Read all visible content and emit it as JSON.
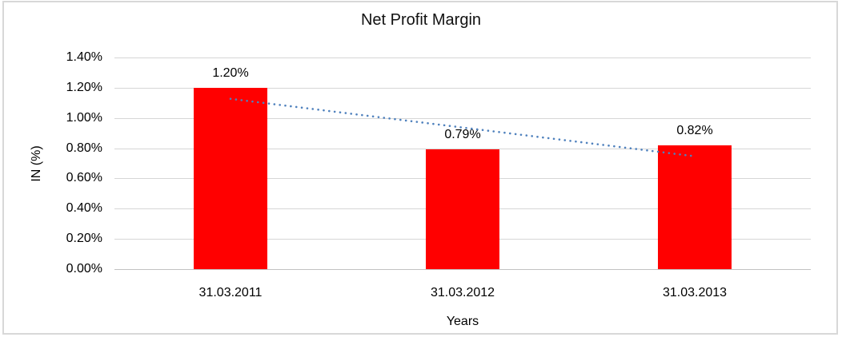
{
  "chart_data": {
    "type": "bar",
    "title": "Net Profit Margin",
    "xlabel": "Years",
    "ylabel": "IN (%)",
    "categories": [
      "31.03.2011",
      "31.03.2012",
      "31.03.2013"
    ],
    "values": [
      1.2,
      0.79,
      0.82
    ],
    "data_labels": [
      "1.20%",
      "0.79%",
      "0.82%"
    ],
    "ylim": [
      0,
      1.4
    ],
    "ytick_step": 0.2,
    "ytick_labels": [
      "0.00%",
      "0.20%",
      "0.40%",
      "0.60%",
      "0.80%",
      "1.00%",
      "1.20%",
      "1.40%"
    ],
    "grid": true,
    "legend": "none",
    "bar_color": "#ff0000",
    "trendline": {
      "type": "linear",
      "style": "dotted",
      "color": "#4f81bd"
    },
    "gridline_color": "#d6d6d6",
    "axis_line_color": "#c2c2c2",
    "frame_color": "#d8d8d8",
    "text_color": "#111111"
  }
}
